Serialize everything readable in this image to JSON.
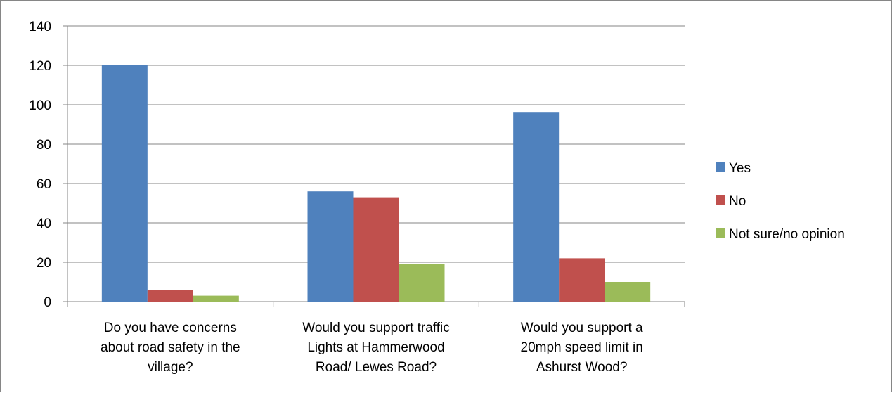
{
  "chart_data": {
    "type": "bar",
    "title": "",
    "xlabel": "",
    "ylabel": "",
    "ylim": [
      0,
      140
    ],
    "yticks": [
      0,
      20,
      40,
      60,
      80,
      100,
      120,
      140
    ],
    "grid": true,
    "legend_position": "right",
    "categories": [
      [
        "Do you have concerns",
        "about road safety in the",
        "village?"
      ],
      [
        "Would you support traffic",
        "Lights at Hammerwood",
        "Road/ Lewes Road?"
      ],
      [
        "Would you support a",
        "20mph speed limit in",
        "Ashurst Wood?"
      ]
    ],
    "series": [
      {
        "name": "Yes",
        "color": "#4F81BD",
        "values": [
          120,
          56,
          96
        ]
      },
      {
        "name": "No",
        "color": "#C0504D",
        "values": [
          6,
          53,
          22
        ]
      },
      {
        "name": "Not sure/no opinion",
        "color": "#9BBB59",
        "values": [
          3,
          19,
          10
        ]
      }
    ]
  }
}
